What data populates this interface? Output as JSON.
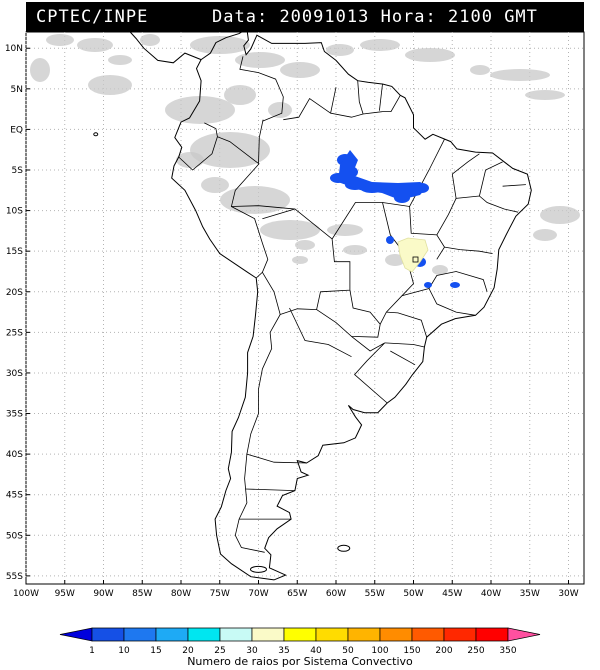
{
  "header": {
    "source": "CPTEC/INPE",
    "date_label": "Data:",
    "date": "20091013",
    "hour_label": "Hora:",
    "hour": "2100 GMT"
  },
  "axes": {
    "lat_labels": [
      "10N",
      "5N",
      "EQ",
      "5S",
      "10S",
      "15S",
      "20S",
      "25S",
      "30S",
      "35S",
      "40S",
      "45S",
      "50S",
      "55S"
    ],
    "lon_labels": [
      "100W",
      "95W",
      "90W",
      "85W",
      "80W",
      "75W",
      "70W",
      "65W",
      "60W",
      "55W",
      "50W",
      "45W",
      "40W",
      "35W",
      "30W"
    ]
  },
  "colorbar": {
    "title": "Numero de raios por Sistema Convectivo",
    "levels": [
      "1",
      "10",
      "15",
      "20",
      "25",
      "30",
      "35",
      "40",
      "50",
      "100",
      "150",
      "200",
      "250",
      "350"
    ],
    "colors": [
      "#0000dd",
      "#1550e6",
      "#1e78f0",
      "#1eaaf5",
      "#00e6f0",
      "#c8faf5",
      "#fafac8",
      "#ffff00",
      "#ffdc00",
      "#ffb400",
      "#ff8c00",
      "#ff5a00",
      "#ff2800",
      "#ff0000",
      "#ff50a0"
    ]
  },
  "map": {
    "cloud_color": "#c8c8c8",
    "land_outline_color": "#000000",
    "grid_color": "#b4b4b4",
    "lightning_color": "#1450f0",
    "light_activity_color": "#fafac8"
  }
}
